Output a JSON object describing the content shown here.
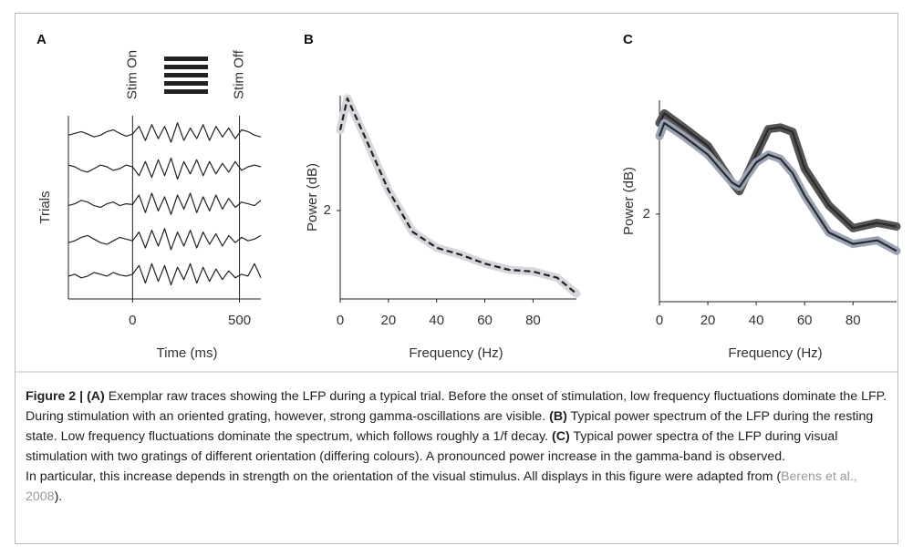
{
  "chart_data": [
    {
      "type": "line",
      "panel_label": "A",
      "xlabel": "Time (ms)",
      "ylabel": "Trials",
      "x": [
        -300,
        -270,
        -240,
        -210,
        -180,
        -150,
        -120,
        -90,
        -60,
        -30,
        0,
        30,
        60,
        90,
        120,
        150,
        180,
        210,
        240,
        270,
        300,
        330,
        360,
        390,
        420,
        450,
        480,
        510,
        540,
        570,
        600
      ],
      "series": [
        {
          "color": "#222222",
          "values": [
            4.95,
            5.0,
            5.05,
            4.98,
            4.9,
            4.95,
            5.05,
            5.1,
            5.0,
            4.92,
            4.98,
            5.2,
            4.8,
            5.25,
            4.85,
            5.2,
            4.75,
            5.3,
            4.8,
            5.15,
            4.85,
            5.25,
            4.8,
            5.2,
            4.9,
            5.15,
            4.85,
            5.1,
            5.05,
            4.95,
            4.9
          ]
        },
        {
          "color": "#222222",
          "values": [
            4.1,
            4.05,
            3.95,
            3.9,
            4.0,
            4.1,
            4.05,
            3.95,
            4.0,
            4.1,
            4.05,
            3.8,
            4.2,
            3.75,
            4.25,
            3.8,
            4.3,
            3.7,
            4.2,
            3.85,
            4.25,
            3.8,
            4.2,
            3.85,
            4.15,
            3.9,
            4.2,
            3.95,
            4.05,
            4.1,
            4.05
          ]
        },
        {
          "color": "#222222",
          "values": [
            2.95,
            3.0,
            3.1,
            3.05,
            2.95,
            2.9,
            3.0,
            3.05,
            2.95,
            3.0,
            2.98,
            3.25,
            2.75,
            3.3,
            2.8,
            3.2,
            2.7,
            3.25,
            2.85,
            3.3,
            2.75,
            3.2,
            2.8,
            3.25,
            2.85,
            3.15,
            2.9,
            3.05,
            3.0,
            2.95,
            3.1
          ]
        },
        {
          "color": "#222222",
          "values": [
            1.9,
            1.95,
            2.05,
            2.1,
            2.0,
            1.9,
            1.85,
            1.95,
            2.05,
            2.0,
            1.95,
            2.2,
            1.75,
            2.25,
            1.8,
            2.3,
            1.7,
            2.2,
            1.8,
            2.25,
            1.75,
            2.2,
            1.85,
            2.15,
            1.8,
            2.1,
            1.9,
            2.05,
            1.95,
            2.0,
            2.1
          ]
        },
        {
          "color": "#222222",
          "values": [
            0.95,
            1.0,
            0.9,
            0.95,
            1.05,
            1.0,
            0.95,
            1.05,
            0.98,
            0.95,
            1.0,
            1.25,
            0.75,
            1.3,
            0.8,
            1.25,
            0.7,
            1.2,
            0.85,
            1.3,
            0.75,
            1.2,
            0.8,
            1.15,
            0.85,
            1.1,
            0.9,
            1.0,
            0.95,
            1.3,
            0.9
          ]
        }
      ],
      "xlim": [
        -300,
        600
      ],
      "xticks": [
        0,
        500
      ],
      "ylim": [
        0.3,
        5.5
      ],
      "annotations": [
        {
          "text": "Stim On",
          "x": 0
        },
        {
          "text": "Stim Off",
          "x": 500
        }
      ]
    },
    {
      "type": "line",
      "panel_label": "B",
      "xlabel": "Frequency (Hz)",
      "ylabel": "Power (dB)",
      "x": [
        0,
        3,
        10,
        20,
        30,
        40,
        50,
        60,
        70,
        80,
        90,
        98
      ],
      "series": [
        {
          "color": "#222222",
          "band_color": "#d6d6dc",
          "dashed": true,
          "values": [
            2.91,
            3.27,
            2.85,
            2.23,
            1.76,
            1.58,
            1.5,
            1.4,
            1.33,
            1.31,
            1.24,
            1.06
          ]
        }
      ],
      "xlim": [
        0,
        98
      ],
      "xticks": [
        0,
        20,
        40,
        60,
        80
      ],
      "ylim": [
        1,
        3.3
      ],
      "yticks": [
        2
      ]
    },
    {
      "type": "line",
      "panel_label": "C",
      "xlabel": "Frequency (Hz)",
      "ylabel": "Power (dB)",
      "x": [
        0,
        2,
        10,
        20,
        30,
        33,
        40,
        45,
        50,
        55,
        60,
        70,
        80,
        90,
        98
      ],
      "series": [
        {
          "color": "#2a2a2a",
          "band_color": "#555555",
          "values": [
            3.04,
            3.15,
            2.99,
            2.78,
            2.36,
            2.26,
            2.68,
            2.97,
            2.99,
            2.94,
            2.52,
            2.1,
            1.84,
            1.9,
            1.86
          ]
        },
        {
          "color": "#2a2a2a",
          "band_color": "#9aa4b6",
          "values": [
            2.89,
            3.04,
            2.89,
            2.68,
            2.36,
            2.31,
            2.59,
            2.68,
            2.63,
            2.47,
            2.21,
            1.79,
            1.66,
            1.7,
            1.58
          ]
        }
      ],
      "xlim": [
        0,
        98
      ],
      "xticks": [
        0,
        20,
        40,
        60,
        80
      ],
      "ylim": [
        1,
        3.3
      ],
      "yticks": [
        2
      ]
    }
  ],
  "caption": {
    "label": "Figure 2 |",
    "parts": [
      {
        "tag": "(A)",
        "text": "Exemplar raw traces showing the LFP during a typical trial. Before the onset of stimulation, low frequency fluctuations dominate the LFP. During stimulation with an oriented grating, however, strong gamma-oscillations are visible."
      },
      {
        "tag": "(B)",
        "text": "Typical power spectrum of the LFP during the resting state. Low frequency fluctuations dominate the spectrum, which follows roughly a 1/f decay."
      },
      {
        "tag": "(C)",
        "text": "Typical power spectra of the LFP during visual stimulation with two gratings of different orientation (differing colours). A pronounced power increase in the gamma-band is observed."
      }
    ],
    "note": "In particular, this increase depends in strength on the orientation of the visual stimulus. All displays in this figure were adapted from (",
    "citation": "Berens et al., 2008",
    "closing": ")."
  }
}
